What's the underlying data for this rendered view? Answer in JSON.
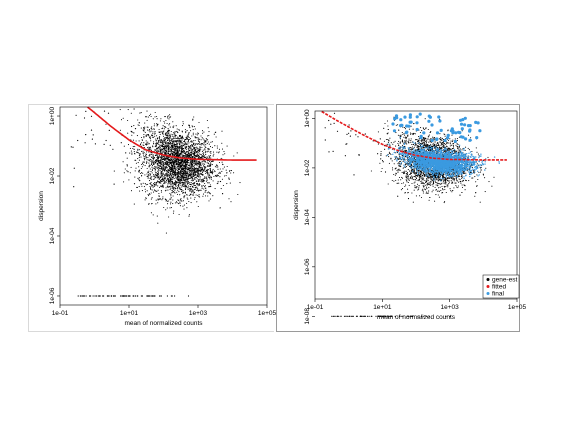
{
  "chart_data": [
    {
      "type": "scatter",
      "xlabel": "mean of normalized counts",
      "ylabel": "dispersion",
      "x_scale": "log",
      "y_scale": "log",
      "xlim": [
        0.1,
        100000
      ],
      "ylim": [
        5e-07,
        2
      ],
      "x_ticks": [
        "1e-01",
        "1e+01",
        "1e+03",
        "1e+05"
      ],
      "y_ticks": [
        "1e+00",
        "1e-02",
        "1e-04",
        "1e-06"
      ],
      "series": [
        {
          "kind": "gene-estimates",
          "color": "#000000",
          "cloud_center": [
            2.4,
            -1.4
          ],
          "x_range": [
            0.1,
            100000
          ]
        },
        {
          "kind": "fitted-trend",
          "color": "#e41a1c",
          "points": [
            [
              0.4,
              3.0
            ],
            [
              1,
              1.3
            ],
            [
              3,
              0.45
            ],
            [
              10,
              0.16
            ],
            [
              30,
              0.075
            ],
            [
              100,
              0.05
            ],
            [
              300,
              0.04
            ],
            [
              1000,
              0.036
            ],
            [
              10000,
              0.034
            ],
            [
              100000,
              0.034
            ]
          ]
        }
      ],
      "zero_line_y": 1e-06,
      "legend": []
    },
    {
      "type": "scatter",
      "xlabel": "mean of normalized counts",
      "ylabel": "dispersion",
      "x_scale": "log",
      "y_scale": "log",
      "xlim": [
        0.1,
        100000
      ],
      "ylim": [
        5e-08,
        2
      ],
      "x_ticks": [
        "1e-01",
        "1e+01",
        "1e+03",
        "1e+05"
      ],
      "y_ticks": [
        "1e+00",
        "1e-02",
        "1e-04",
        "1e-06",
        "1e-08"
      ],
      "series": [
        {
          "name": "gene-est",
          "color": "#000000",
          "cloud_center": [
            2.4,
            -1.6
          ]
        },
        {
          "name": "fitted",
          "color": "#e41a1c",
          "points": [
            [
              0.15,
              2.0
            ],
            [
              0.4,
              0.9
            ],
            [
              1,
              0.45
            ],
            [
              3,
              0.2
            ],
            [
              10,
              0.09
            ],
            [
              30,
              0.05
            ],
            [
              100,
              0.032
            ],
            [
              300,
              0.025
            ],
            [
              1000,
              0.022
            ],
            [
              10000,
              0.021
            ],
            [
              100000,
              0.021
            ]
          ]
        },
        {
          "name": "final",
          "color": "#3b9ae0",
          "cloud_center": [
            2.4,
            -1.5
          ]
        }
      ],
      "zero_line_y": 1e-08,
      "legend": [
        {
          "label": "gene-est",
          "color": "#000000"
        },
        {
          "label": "fitted",
          "color": "#e41a1c"
        },
        {
          "label": "final",
          "color": "#3b9ae0"
        }
      ],
      "legend_position": "bottom-right"
    }
  ]
}
